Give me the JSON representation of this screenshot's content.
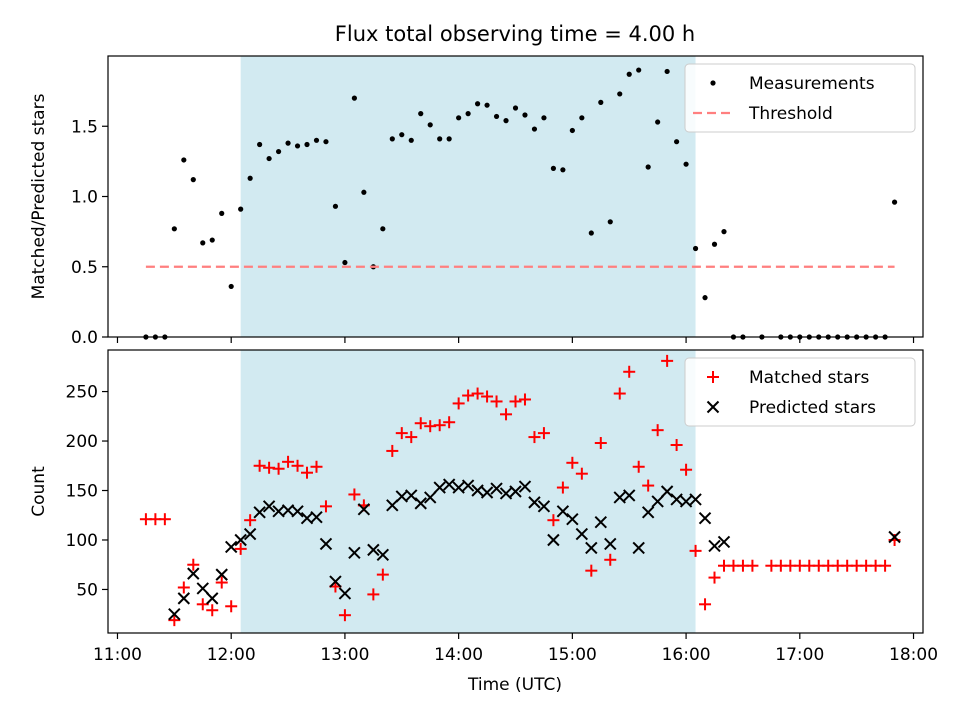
{
  "chart_data": [
    {
      "type": "scatter",
      "title": "Flux total observing time = 4.00 h",
      "xlabel": "",
      "ylabel": "Matched/Predicted stars",
      "xlim": [
        "10:55",
        "18:05"
      ],
      "ylim": [
        0,
        2.0
      ],
      "yticks": [
        0.0,
        0.5,
        1.0,
        1.5
      ],
      "ytick_labels": [
        "0.0",
        "0.5",
        "1.0",
        "1.5"
      ],
      "xticks": [
        "11:00",
        "12:00",
        "13:00",
        "14:00",
        "15:00",
        "16:00",
        "17:00",
        "18:00"
      ],
      "shaded_span": {
        "start": "12:05",
        "end": "16:05",
        "color": "#add8e6"
      },
      "legend": {
        "position": "top-right",
        "entries": [
          "Measurements",
          "Threshold"
        ]
      },
      "series": [
        {
          "name": "Measurements",
          "marker": "dot",
          "color": "#000000",
          "points": [
            [
              "11:15",
              0.0
            ],
            [
              "11:20",
              0.0
            ],
            [
              "11:25",
              0.0
            ],
            [
              "11:30",
              0.77
            ],
            [
              "11:35",
              1.26
            ],
            [
              "11:40",
              1.12
            ],
            [
              "11:45",
              0.67
            ],
            [
              "11:50",
              0.69
            ],
            [
              "11:55",
              0.88
            ],
            [
              "12:00",
              0.36
            ],
            [
              "12:05",
              0.91
            ],
            [
              "12:10",
              1.13
            ],
            [
              "12:15",
              1.37
            ],
            [
              "12:20",
              1.27
            ],
            [
              "12:25",
              1.32
            ],
            [
              "12:30",
              1.38
            ],
            [
              "12:35",
              1.36
            ],
            [
              "12:40",
              1.37
            ],
            [
              "12:45",
              1.4
            ],
            [
              "12:50",
              1.39
            ],
            [
              "12:55",
              0.93
            ],
            [
              "13:00",
              0.53
            ],
            [
              "13:05",
              1.7
            ],
            [
              "13:10",
              1.03
            ],
            [
              "13:15",
              0.5
            ],
            [
              "13:20",
              0.77
            ],
            [
              "13:25",
              1.41
            ],
            [
              "13:30",
              1.44
            ],
            [
              "13:35",
              1.4
            ],
            [
              "13:40",
              1.59
            ],
            [
              "13:45",
              1.51
            ],
            [
              "13:50",
              1.41
            ],
            [
              "13:55",
              1.41
            ],
            [
              "14:00",
              1.56
            ],
            [
              "14:05",
              1.59
            ],
            [
              "14:10",
              1.66
            ],
            [
              "14:15",
              1.65
            ],
            [
              "14:20",
              1.57
            ],
            [
              "14:25",
              1.54
            ],
            [
              "14:30",
              1.63
            ],
            [
              "14:35",
              1.58
            ],
            [
              "14:40",
              1.48
            ],
            [
              "14:45",
              1.56
            ],
            [
              "14:50",
              1.2
            ],
            [
              "14:55",
              1.19
            ],
            [
              "15:00",
              1.47
            ],
            [
              "15:05",
              1.56
            ],
            [
              "15:10",
              0.74
            ],
            [
              "15:15",
              1.67
            ],
            [
              "15:20",
              0.82
            ],
            [
              "15:25",
              1.73
            ],
            [
              "15:30",
              1.87
            ],
            [
              "15:35",
              1.9
            ],
            [
              "15:40",
              1.21
            ],
            [
              "15:45",
              1.53
            ],
            [
              "15:50",
              1.89
            ],
            [
              "15:55",
              1.39
            ],
            [
              "16:00",
              1.23
            ],
            [
              "16:05",
              0.63
            ],
            [
              "16:10",
              0.28
            ],
            [
              "16:15",
              0.66
            ],
            [
              "16:20",
              0.75
            ],
            [
              "16:25",
              0.0
            ],
            [
              "16:30",
              0.0
            ],
            [
              "16:40",
              0.0
            ],
            [
              "16:50",
              0.0
            ],
            [
              "16:55",
              0.0
            ],
            [
              "17:00",
              0.0
            ],
            [
              "17:05",
              0.0
            ],
            [
              "17:10",
              0.0
            ],
            [
              "17:15",
              0.0
            ],
            [
              "17:20",
              0.0
            ],
            [
              "17:25",
              0.0
            ],
            [
              "17:30",
              0.0
            ],
            [
              "17:35",
              0.0
            ],
            [
              "17:40",
              0.0
            ],
            [
              "17:45",
              0.0
            ],
            [
              "17:50",
              0.96
            ]
          ]
        },
        {
          "name": "Threshold",
          "marker": "dashed-line",
          "color": "#ff7f7f",
          "points": [
            [
              "11:15",
              0.5
            ],
            [
              "17:50",
              0.5
            ]
          ]
        }
      ]
    },
    {
      "type": "scatter",
      "title": "",
      "xlabel": "Time (UTC)",
      "ylabel": "Count",
      "xlim": [
        "10:55",
        "18:05"
      ],
      "ylim": [
        6,
        292
      ],
      "yticks": [
        50,
        100,
        150,
        200,
        250
      ],
      "ytick_labels": [
        "50",
        "100",
        "150",
        "200",
        "250"
      ],
      "xticks": [
        "11:00",
        "12:00",
        "13:00",
        "14:00",
        "15:00",
        "16:00",
        "17:00",
        "18:00"
      ],
      "xtick_labels": [
        "11:00",
        "12:00",
        "13:00",
        "14:00",
        "15:00",
        "16:00",
        "17:00",
        "18:00"
      ],
      "shaded_span": {
        "start": "12:05",
        "end": "16:05",
        "color": "#add8e6"
      },
      "legend": {
        "position": "top-right",
        "entries": [
          "Matched stars",
          "Predicted stars"
        ]
      },
      "series": [
        {
          "name": "Matched stars",
          "marker": "plus",
          "color": "#ff0000",
          "points": [
            [
              "11:15",
              121
            ],
            [
              "11:20",
              121
            ],
            [
              "11:25",
              121
            ],
            [
              "11:30",
              19
            ],
            [
              "11:35",
              52
            ],
            [
              "11:40",
              75
            ],
            [
              "11:45",
              35
            ],
            [
              "11:50",
              29
            ],
            [
              "11:55",
              57
            ],
            [
              "12:00",
              33
            ],
            [
              "12:05",
              91
            ],
            [
              "12:10",
              120
            ],
            [
              "12:15",
              175
            ],
            [
              "12:20",
              173
            ],
            [
              "12:25",
              172
            ],
            [
              "12:30",
              179
            ],
            [
              "12:35",
              175
            ],
            [
              "12:40",
              168
            ],
            [
              "12:45",
              174
            ],
            [
              "12:50",
              134
            ],
            [
              "12:55",
              53
            ],
            [
              "13:00",
              24
            ],
            [
              "13:05",
              146
            ],
            [
              "13:10",
              135
            ],
            [
              "13:15",
              45
            ],
            [
              "13:20",
              65
            ],
            [
              "13:25",
              190
            ],
            [
              "13:30",
              208
            ],
            [
              "13:35",
              204
            ],
            [
              "13:40",
              218
            ],
            [
              "13:45",
              215
            ],
            [
              "13:50",
              216
            ],
            [
              "13:55",
              219
            ],
            [
              "14:00",
              238
            ],
            [
              "14:05",
              246
            ],
            [
              "14:10",
              248
            ],
            [
              "14:15",
              245
            ],
            [
              "14:20",
              240
            ],
            [
              "14:25",
              227
            ],
            [
              "14:30",
              240
            ],
            [
              "14:35",
              242
            ],
            [
              "14:40",
              204
            ],
            [
              "14:45",
              208
            ],
            [
              "14:50",
              120
            ],
            [
              "14:55",
              153
            ],
            [
              "15:00",
              178
            ],
            [
              "15:05",
              167
            ],
            [
              "15:10",
              69
            ],
            [
              "15:15",
              198
            ],
            [
              "15:20",
              80
            ],
            [
              "15:25",
              248
            ],
            [
              "15:30",
              270
            ],
            [
              "15:35",
              174
            ],
            [
              "15:40",
              155
            ],
            [
              "15:45",
              211
            ],
            [
              "15:50",
              281
            ],
            [
              "15:55",
              196
            ],
            [
              "16:00",
              171
            ],
            [
              "16:05",
              89
            ],
            [
              "16:10",
              35
            ],
            [
              "16:15",
              62
            ],
            [
              "16:20",
              74
            ],
            [
              "16:25",
              74
            ],
            [
              "16:30",
              74
            ],
            [
              "16:35",
              74
            ],
            [
              "16:45",
              74
            ],
            [
              "16:50",
              74
            ],
            [
              "16:55",
              74
            ],
            [
              "17:00",
              74
            ],
            [
              "17:05",
              74
            ],
            [
              "17:10",
              74
            ],
            [
              "17:15",
              74
            ],
            [
              "17:20",
              74
            ],
            [
              "17:25",
              74
            ],
            [
              "17:30",
              74
            ],
            [
              "17:35",
              74
            ],
            [
              "17:40",
              74
            ],
            [
              "17:45",
              74
            ],
            [
              "17:50",
              100
            ]
          ]
        },
        {
          "name": "Predicted stars",
          "marker": "x",
          "color": "#000000",
          "points": [
            [
              "11:30",
              25
            ],
            [
              "11:35",
              41
            ],
            [
              "11:40",
              66
            ],
            [
              "11:45",
              51
            ],
            [
              "11:50",
              41
            ],
            [
              "11:55",
              65
            ],
            [
              "12:00",
              93
            ],
            [
              "12:05",
              100
            ],
            [
              "12:10",
              106
            ],
            [
              "12:15",
              128
            ],
            [
              "12:20",
              134
            ],
            [
              "12:25",
              129
            ],
            [
              "12:30",
              130
            ],
            [
              "12:35",
              129
            ],
            [
              "12:40",
              122
            ],
            [
              "12:45",
              123
            ],
            [
              "12:50",
              96
            ],
            [
              "12:55",
              58
            ],
            [
              "13:00",
              46
            ],
            [
              "13:05",
              87
            ],
            [
              "13:10",
              131
            ],
            [
              "13:15",
              90
            ],
            [
              "13:20",
              85
            ],
            [
              "13:25",
              135
            ],
            [
              "13:30",
              144
            ],
            [
              "13:35",
              145
            ],
            [
              "13:40",
              137
            ],
            [
              "13:45",
              143
            ],
            [
              "13:50",
              153
            ],
            [
              "13:55",
              156
            ],
            [
              "14:00",
              153
            ],
            [
              "14:05",
              155
            ],
            [
              "14:10",
              150
            ],
            [
              "14:15",
              148
            ],
            [
              "14:20",
              152
            ],
            [
              "14:25",
              147
            ],
            [
              "14:30",
              149
            ],
            [
              "14:35",
              154
            ],
            [
              "14:40",
              138
            ],
            [
              "14:45",
              134
            ],
            [
              "14:50",
              100
            ],
            [
              "14:55",
              129
            ],
            [
              "15:00",
              121
            ],
            [
              "15:05",
              106
            ],
            [
              "15:10",
              92
            ],
            [
              "15:15",
              118
            ],
            [
              "15:20",
              96
            ],
            [
              "15:25",
              143
            ],
            [
              "15:30",
              145
            ],
            [
              "15:35",
              92
            ],
            [
              "15:40",
              128
            ],
            [
              "15:45",
              139
            ],
            [
              "15:50",
              149
            ],
            [
              "15:55",
              141
            ],
            [
              "16:00",
              139
            ],
            [
              "16:05",
              141
            ],
            [
              "16:10",
              122
            ],
            [
              "16:15",
              94
            ],
            [
              "16:20",
              98
            ],
            [
              "17:50",
              103
            ]
          ]
        }
      ]
    }
  ]
}
